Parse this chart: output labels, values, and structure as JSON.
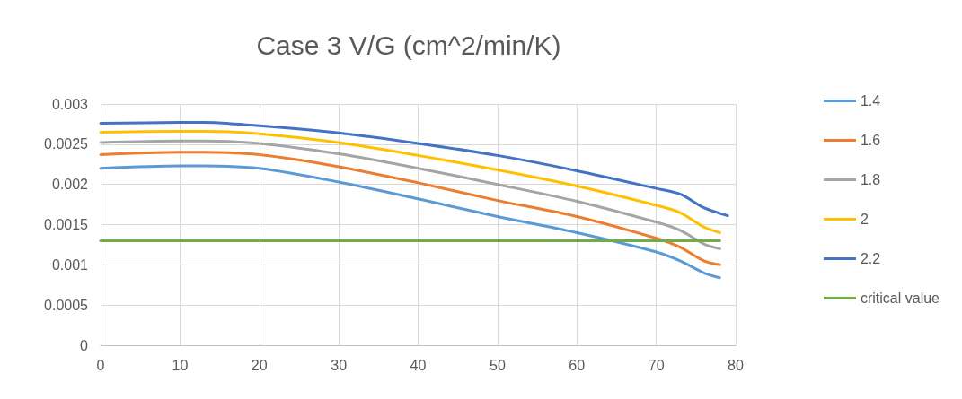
{
  "chart_data": {
    "type": "line",
    "title": "Case 3 V/G (cm^2/min/K)",
    "xlim": [
      0,
      80
    ],
    "xticks": [
      0,
      10,
      20,
      30,
      40,
      50,
      60,
      70,
      80
    ],
    "ylim": [
      0,
      0.003
    ],
    "yticks": [
      0,
      0.0005,
      0.001,
      0.0015,
      0.002,
      0.0025,
      0.003
    ],
    "grid": true,
    "legend": "right",
    "marker": "none",
    "line_style": "solid",
    "series": [
      {
        "name": "1.4",
        "color": "#5b9bd5",
        "x": [
          0,
          10,
          13,
          20,
          30,
          40,
          50,
          60,
          70,
          73,
          76,
          78
        ],
        "values": [
          0.0022,
          0.00223,
          0.00223,
          0.0022,
          0.00203,
          0.00182,
          0.0016,
          0.0014,
          0.00116,
          0.00105,
          0.0009,
          0.00084
        ]
      },
      {
        "name": "1.6",
        "color": "#ed7d31",
        "x": [
          0,
          10,
          13,
          20,
          30,
          40,
          50,
          60,
          70,
          73,
          76,
          78
        ],
        "values": [
          0.00237,
          0.0024,
          0.0024,
          0.00237,
          0.00222,
          0.00202,
          0.0018,
          0.0016,
          0.00133,
          0.00122,
          0.00105,
          0.001
        ]
      },
      {
        "name": "1.8",
        "color": "#a5a5a5",
        "x": [
          0,
          10,
          13,
          20,
          30,
          40,
          50,
          60,
          70,
          73,
          76,
          78
        ],
        "values": [
          0.00252,
          0.00254,
          0.00254,
          0.00251,
          0.00238,
          0.0022,
          0.002,
          0.00179,
          0.00153,
          0.00143,
          0.00126,
          0.0012
        ]
      },
      {
        "name": "2",
        "color": "#ffc000",
        "x": [
          0,
          10,
          13,
          20,
          30,
          40,
          50,
          60,
          70,
          73,
          76,
          78
        ],
        "values": [
          0.00265,
          0.00266,
          0.00266,
          0.00263,
          0.00252,
          0.00236,
          0.00218,
          0.00198,
          0.00174,
          0.00165,
          0.00147,
          0.0014
        ]
      },
      {
        "name": "2.2",
        "color": "#4472c4",
        "x": [
          0,
          10,
          13,
          20,
          30,
          40,
          50,
          60,
          70,
          73,
          76,
          79
        ],
        "values": [
          0.00276,
          0.00277,
          0.00277,
          0.00273,
          0.00264,
          0.00251,
          0.00236,
          0.00217,
          0.00195,
          0.00188,
          0.00171,
          0.00161
        ]
      },
      {
        "name": "critical value",
        "color": "#70ad47",
        "x": [
          0,
          78
        ],
        "values": [
          0.0013,
          0.0013
        ]
      }
    ]
  }
}
